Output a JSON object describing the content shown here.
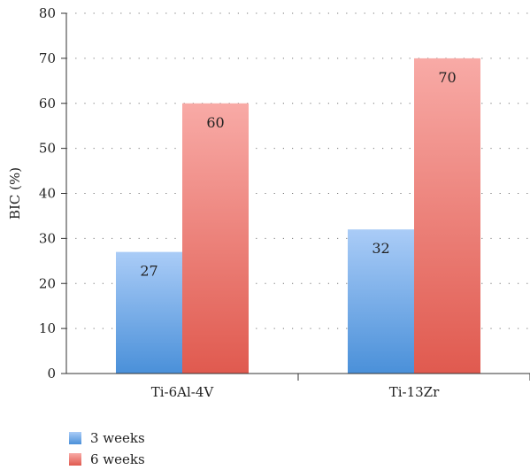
{
  "chart_data": {
    "type": "bar",
    "categories": [
      "Ti-6Al-4V",
      "Ti-13Zr"
    ],
    "series": [
      {
        "name": "3 weeks",
        "values": [
          27,
          32
        ],
        "color_top": "#aaccf7",
        "color_bottom": "#4a90d9"
      },
      {
        "name": "6 weeks",
        "values": [
          60,
          70
        ],
        "color_top": "#f8aaa6",
        "color_bottom": "#e05a4f"
      }
    ],
    "title": "",
    "xlabel": "",
    "ylabel": "BIC (%)",
    "ylim": [
      0,
      80
    ],
    "yticks": [
      0,
      10,
      20,
      30,
      40,
      50,
      60,
      70,
      80
    ],
    "grid": "dotted horizontal",
    "legend_position": "bottom-left",
    "data_labels": true
  }
}
